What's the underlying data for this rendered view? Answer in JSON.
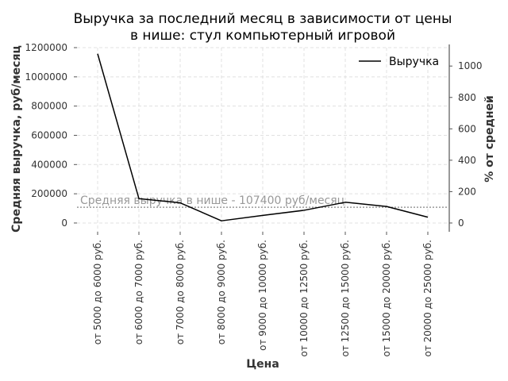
{
  "chart_data": {
    "type": "line",
    "title_lines": [
      "Выручка за последний месяц в зависимости от цены",
      "в нише: стул компьютерный игровой"
    ],
    "xlabel": "Цена",
    "ylabel": "Средняя выручка, руб/месяц",
    "ylabel_right": "% от средней",
    "categories": [
      "от 5000 до 6000 руб.",
      "от 6000 до 7000 руб.",
      "от 7000 до 8000 руб.",
      "от 8000 до 9000 руб.",
      "от 9000 до 10000 руб.",
      "от 10000 до 12500 руб.",
      "от 12500 до 15000 руб.",
      "от 15000 до 20000 руб.",
      "от 20000 до 25000 руб."
    ],
    "series": [
      {
        "name": "Выручка",
        "values": [
          1158000,
          167000,
          138000,
          15000,
          52000,
          87000,
          142000,
          113000,
          40000
        ],
        "color": "#000000"
      }
    ],
    "average": {
      "value": 107400,
      "label": "Средняя выручка в нише - 107400 руб/месяц",
      "color": "#999999"
    },
    "ylim": [
      -60000,
      1200000
    ],
    "yticks": [
      0,
      200000,
      400000,
      600000,
      800000,
      1000000,
      1200000
    ],
    "ytick_labels": [
      "0",
      "200000",
      "400000",
      "600000",
      "800000",
      "1000000",
      "1200000"
    ],
    "yticks_right": [
      0,
      200,
      400,
      600,
      800,
      1000
    ],
    "ytick_labels_right": [
      "0",
      "200",
      "400",
      "600",
      "800",
      "1000"
    ],
    "legend": "top-right",
    "grid": true
  }
}
